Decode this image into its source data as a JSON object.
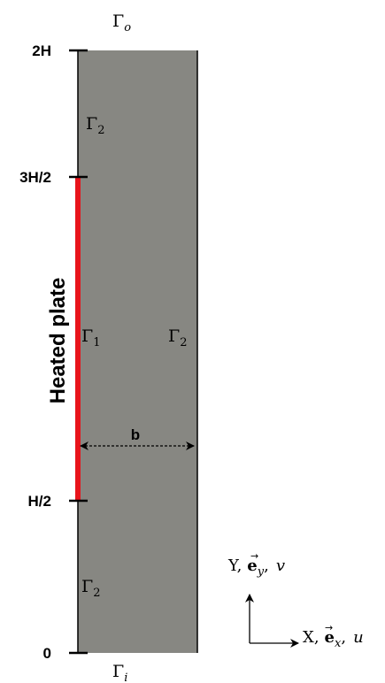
{
  "diagram": {
    "colors": {
      "channel_fill": "#878782",
      "heated_plate": "#e8141b",
      "stroke": "#000000"
    },
    "ticks": [
      {
        "label": "2H"
      },
      {
        "label": "3H/2"
      },
      {
        "label": "H/2"
      },
      {
        "label": "0"
      }
    ],
    "boundaries": {
      "outlet": {
        "symbol": "Γ",
        "sub": "o"
      },
      "inlet": {
        "symbol": "Γ",
        "sub": "i"
      },
      "gamma2_upper": {
        "symbol": "Γ",
        "sub": "2"
      },
      "gamma1": {
        "symbol": "Γ",
        "sub": "1"
      },
      "gamma2_right": {
        "symbol": "Γ",
        "sub": "2"
      },
      "gamma2_lower": {
        "symbol": "Γ",
        "sub": "2"
      }
    },
    "heated_plate_label": "Heated plate",
    "width_label": "b",
    "axes": {
      "y": {
        "name": "Y,",
        "vec": "e",
        "vec_sub": "y",
        "comp": "v"
      },
      "x": {
        "name": "X,",
        "vec": "e",
        "vec_sub": "x",
        "comp": "u"
      }
    }
  }
}
